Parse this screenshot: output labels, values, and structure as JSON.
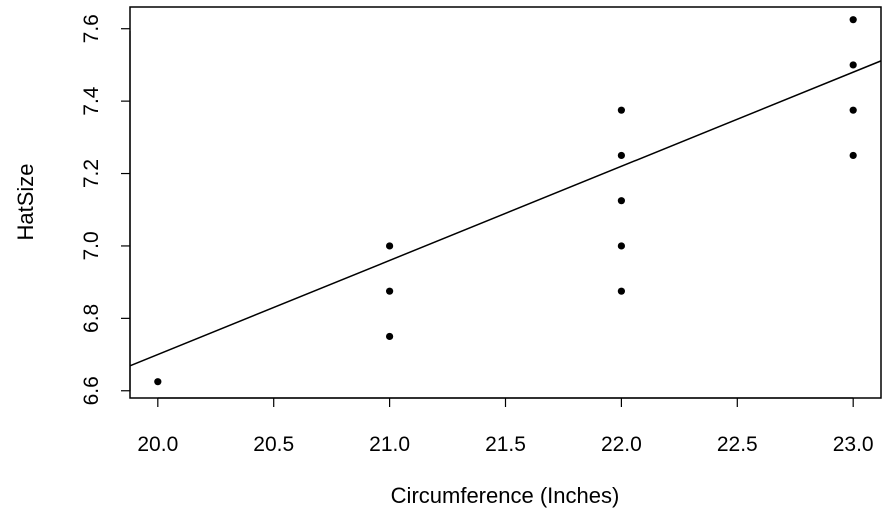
{
  "chart_data": {
    "type": "scatter",
    "title": "",
    "xlabel": "Circumference (Inches)",
    "ylabel": "HatSize",
    "xlim": [
      19.88,
      23.12
    ],
    "ylim": [
      6.58,
      7.66
    ],
    "xticks": [
      "20.0",
      "20.5",
      "21.0",
      "21.5",
      "22.0",
      "22.5",
      "23.0"
    ],
    "yticks": [
      "6.6",
      "6.8",
      "7.0",
      "7.2",
      "7.4",
      "7.6"
    ],
    "grid": false,
    "points": [
      {
        "x": 20,
        "y": 6.625
      },
      {
        "x": 21,
        "y": 6.75
      },
      {
        "x": 21,
        "y": 6.875
      },
      {
        "x": 21,
        "y": 7.0
      },
      {
        "x": 22,
        "y": 6.875
      },
      {
        "x": 22,
        "y": 7.0
      },
      {
        "x": 22,
        "y": 7.125
      },
      {
        "x": 22,
        "y": 7.25
      },
      {
        "x": 22,
        "y": 7.375
      },
      {
        "x": 23,
        "y": 7.25
      },
      {
        "x": 23,
        "y": 7.375
      },
      {
        "x": 23,
        "y": 7.5
      },
      {
        "x": 23,
        "y": 7.625
      }
    ],
    "fit_line": {
      "intercept": 1.5,
      "slope": 0.26
    },
    "colors": {
      "points": "#000000",
      "line": "#000000",
      "frame": "#000000"
    }
  }
}
